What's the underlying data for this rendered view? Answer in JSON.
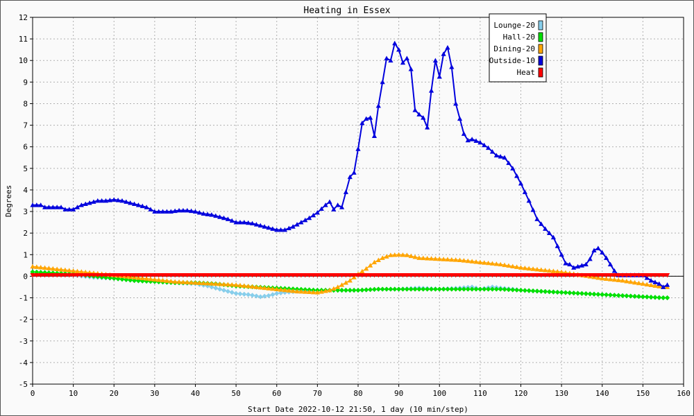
{
  "chart_data": {
    "type": "line",
    "title": "Heating in Essex",
    "xlabel": "Start Date 2022-10-12 21:50, 1 day (10 min/step)",
    "ylabel": "Degrees",
    "xlim": [
      0,
      160
    ],
    "ylim": [
      -5,
      12
    ],
    "xticks": [
      0,
      10,
      20,
      30,
      40,
      50,
      60,
      70,
      80,
      90,
      100,
      110,
      120,
      130,
      140,
      150,
      160
    ],
    "yticks": [
      -5,
      -4,
      -3,
      -2,
      -1,
      0,
      1,
      2,
      3,
      4,
      5,
      6,
      7,
      8,
      9,
      10,
      11,
      12
    ],
    "grid": true,
    "legend_position": "top-right",
    "series": [
      {
        "name": "Lounge-20",
        "color": "#87ceeb",
        "marker": "diamond",
        "points": [
          [
            0,
            0.2
          ],
          [
            5,
            0.15
          ],
          [
            10,
            0.05
          ],
          [
            15,
            -0.05
          ],
          [
            20,
            -0.1
          ],
          [
            25,
            -0.2
          ],
          [
            30,
            -0.25
          ],
          [
            35,
            -0.3
          ],
          [
            40,
            -0.35
          ],
          [
            43,
            -0.45
          ],
          [
            46,
            -0.6
          ],
          [
            50,
            -0.8
          ],
          [
            53,
            -0.85
          ],
          [
            56,
            -0.95
          ],
          [
            58,
            -0.9
          ],
          [
            60,
            -0.8
          ],
          [
            62,
            -0.75
          ],
          [
            65,
            -0.7
          ],
          [
            70,
            -0.65
          ],
          [
            75,
            -0.65
          ],
          [
            80,
            -0.65
          ],
          [
            85,
            -0.6
          ],
          [
            90,
            -0.6
          ],
          [
            95,
            -0.55
          ],
          [
            100,
            -0.6
          ],
          [
            105,
            -0.55
          ],
          [
            108,
            -0.5
          ],
          [
            110,
            -0.6
          ],
          [
            113,
            -0.5
          ],
          [
            115,
            -0.55
          ],
          [
            118,
            -0.6
          ],
          [
            120,
            -0.65
          ],
          [
            125,
            -0.7
          ],
          [
            130,
            -0.75
          ],
          [
            135,
            -0.8
          ],
          [
            140,
            -0.85
          ],
          [
            145,
            -0.9
          ],
          [
            150,
            -0.95
          ],
          [
            155,
            -1.0
          ],
          [
            156,
            -1.0
          ]
        ]
      },
      {
        "name": "Hall-20",
        "color": "#00e000",
        "marker": "diamond",
        "points": [
          [
            0,
            0.2
          ],
          [
            5,
            0.15
          ],
          [
            10,
            0.1
          ],
          [
            15,
            0.0
          ],
          [
            20,
            -0.1
          ],
          [
            25,
            -0.2
          ],
          [
            30,
            -0.25
          ],
          [
            35,
            -0.3
          ],
          [
            40,
            -0.3
          ],
          [
            45,
            -0.35
          ],
          [
            50,
            -0.45
          ],
          [
            55,
            -0.5
          ],
          [
            60,
            -0.55
          ],
          [
            65,
            -0.6
          ],
          [
            70,
            -0.65
          ],
          [
            75,
            -0.65
          ],
          [
            80,
            -0.65
          ],
          [
            85,
            -0.6
          ],
          [
            90,
            -0.6
          ],
          [
            95,
            -0.6
          ],
          [
            100,
            -0.6
          ],
          [
            105,
            -0.6
          ],
          [
            110,
            -0.6
          ],
          [
            115,
            -0.6
          ],
          [
            120,
            -0.65
          ],
          [
            125,
            -0.7
          ],
          [
            130,
            -0.75
          ],
          [
            135,
            -0.8
          ],
          [
            140,
            -0.85
          ],
          [
            145,
            -0.9
          ],
          [
            150,
            -0.95
          ],
          [
            155,
            -1.0
          ],
          [
            156,
            -1.0
          ]
        ]
      },
      {
        "name": "Dining-20",
        "color": "#ffa500",
        "marker": "triangle-up",
        "points": [
          [
            0,
            0.45
          ],
          [
            5,
            0.35
          ],
          [
            10,
            0.25
          ],
          [
            15,
            0.15
          ],
          [
            20,
            0.05
          ],
          [
            25,
            -0.05
          ],
          [
            30,
            -0.15
          ],
          [
            35,
            -0.25
          ],
          [
            40,
            -0.3
          ],
          [
            45,
            -0.35
          ],
          [
            50,
            -0.4
          ],
          [
            55,
            -0.5
          ],
          [
            60,
            -0.6
          ],
          [
            65,
            -0.7
          ],
          [
            70,
            -0.75
          ],
          [
            73,
            -0.65
          ],
          [
            75,
            -0.5
          ],
          [
            78,
            -0.2
          ],
          [
            80,
            0.1
          ],
          [
            82,
            0.35
          ],
          [
            84,
            0.65
          ],
          [
            86,
            0.85
          ],
          [
            88,
            0.98
          ],
          [
            90,
            1.0
          ],
          [
            92,
            0.98
          ],
          [
            95,
            0.85
          ],
          [
            100,
            0.8
          ],
          [
            105,
            0.75
          ],
          [
            110,
            0.65
          ],
          [
            115,
            0.55
          ],
          [
            120,
            0.4
          ],
          [
            125,
            0.3
          ],
          [
            130,
            0.2
          ],
          [
            135,
            0.05
          ],
          [
            140,
            -0.1
          ],
          [
            145,
            -0.2
          ],
          [
            150,
            -0.35
          ],
          [
            155,
            -0.5
          ],
          [
            156,
            -0.5
          ]
        ]
      },
      {
        "name": "Outside-10",
        "color": "#0000dd",
        "marker": "triangle-up",
        "points": [
          [
            0,
            3.3
          ],
          [
            2,
            3.3
          ],
          [
            3,
            3.2
          ],
          [
            5,
            3.2
          ],
          [
            7,
            3.2
          ],
          [
            8,
            3.1
          ],
          [
            10,
            3.1
          ],
          [
            12,
            3.3
          ],
          [
            14,
            3.4
          ],
          [
            16,
            3.5
          ],
          [
            18,
            3.5
          ],
          [
            20,
            3.55
          ],
          [
            22,
            3.5
          ],
          [
            24,
            3.4
          ],
          [
            26,
            3.3
          ],
          [
            28,
            3.2
          ],
          [
            30,
            3.0
          ],
          [
            32,
            3.0
          ],
          [
            34,
            3.0
          ],
          [
            36,
            3.05
          ],
          [
            38,
            3.05
          ],
          [
            40,
            3.0
          ],
          [
            42,
            2.9
          ],
          [
            44,
            2.85
          ],
          [
            46,
            2.75
          ],
          [
            48,
            2.65
          ],
          [
            50,
            2.5
          ],
          [
            52,
            2.5
          ],
          [
            54,
            2.45
          ],
          [
            56,
            2.35
          ],
          [
            58,
            2.25
          ],
          [
            60,
            2.15
          ],
          [
            62,
            2.15
          ],
          [
            64,
            2.3
          ],
          [
            66,
            2.5
          ],
          [
            68,
            2.7
          ],
          [
            70,
            2.95
          ],
          [
            72,
            3.3
          ],
          [
            73,
            3.45
          ],
          [
            74,
            3.1
          ],
          [
            75,
            3.3
          ],
          [
            76,
            3.2
          ],
          [
            77,
            3.9
          ],
          [
            78,
            4.6
          ],
          [
            79,
            4.8
          ],
          [
            80,
            5.9
          ],
          [
            81,
            7.1
          ],
          [
            82,
            7.3
          ],
          [
            83,
            7.35
          ],
          [
            84,
            6.5
          ],
          [
            85,
            7.9
          ],
          [
            86,
            9.0
          ],
          [
            87,
            10.1
          ],
          [
            88,
            10.0
          ],
          [
            89,
            10.8
          ],
          [
            90,
            10.5
          ],
          [
            91,
            9.9
          ],
          [
            92,
            10.1
          ],
          [
            93,
            9.6
          ],
          [
            94,
            7.7
          ],
          [
            95,
            7.5
          ],
          [
            96,
            7.35
          ],
          [
            97,
            6.9
          ],
          [
            98,
            8.6
          ],
          [
            99,
            10.0
          ],
          [
            100,
            9.25
          ],
          [
            101,
            10.3
          ],
          [
            102,
            10.6
          ],
          [
            103,
            9.7
          ],
          [
            104,
            8.0
          ],
          [
            105,
            7.3
          ],
          [
            106,
            6.6
          ],
          [
            107,
            6.3
          ],
          [
            108,
            6.35
          ],
          [
            110,
            6.2
          ],
          [
            112,
            5.95
          ],
          [
            114,
            5.6
          ],
          [
            116,
            5.5
          ],
          [
            118,
            5.0
          ],
          [
            120,
            4.3
          ],
          [
            122,
            3.5
          ],
          [
            124,
            2.65
          ],
          [
            126,
            2.2
          ],
          [
            128,
            1.8
          ],
          [
            130,
            1.0
          ],
          [
            131,
            0.6
          ],
          [
            132,
            0.55
          ],
          [
            133,
            0.4
          ],
          [
            134,
            0.45
          ],
          [
            135,
            0.5
          ],
          [
            136,
            0.55
          ],
          [
            137,
            0.8
          ],
          [
            138,
            1.2
          ],
          [
            139,
            1.3
          ],
          [
            140,
            1.1
          ],
          [
            141,
            0.85
          ],
          [
            142,
            0.55
          ],
          [
            143,
            0.25
          ],
          [
            144,
            0.05
          ],
          [
            146,
            0.05
          ],
          [
            148,
            0.05
          ],
          [
            150,
            0.05
          ],
          [
            152,
            -0.2
          ],
          [
            154,
            -0.35
          ],
          [
            155,
            -0.5
          ],
          [
            156,
            -0.4
          ]
        ]
      },
      {
        "name": "Heat",
        "color": "#ff0000",
        "marker": "triangle-down",
        "points": [
          [
            0,
            0.05
          ],
          [
            156,
            0.05
          ]
        ]
      }
    ]
  }
}
